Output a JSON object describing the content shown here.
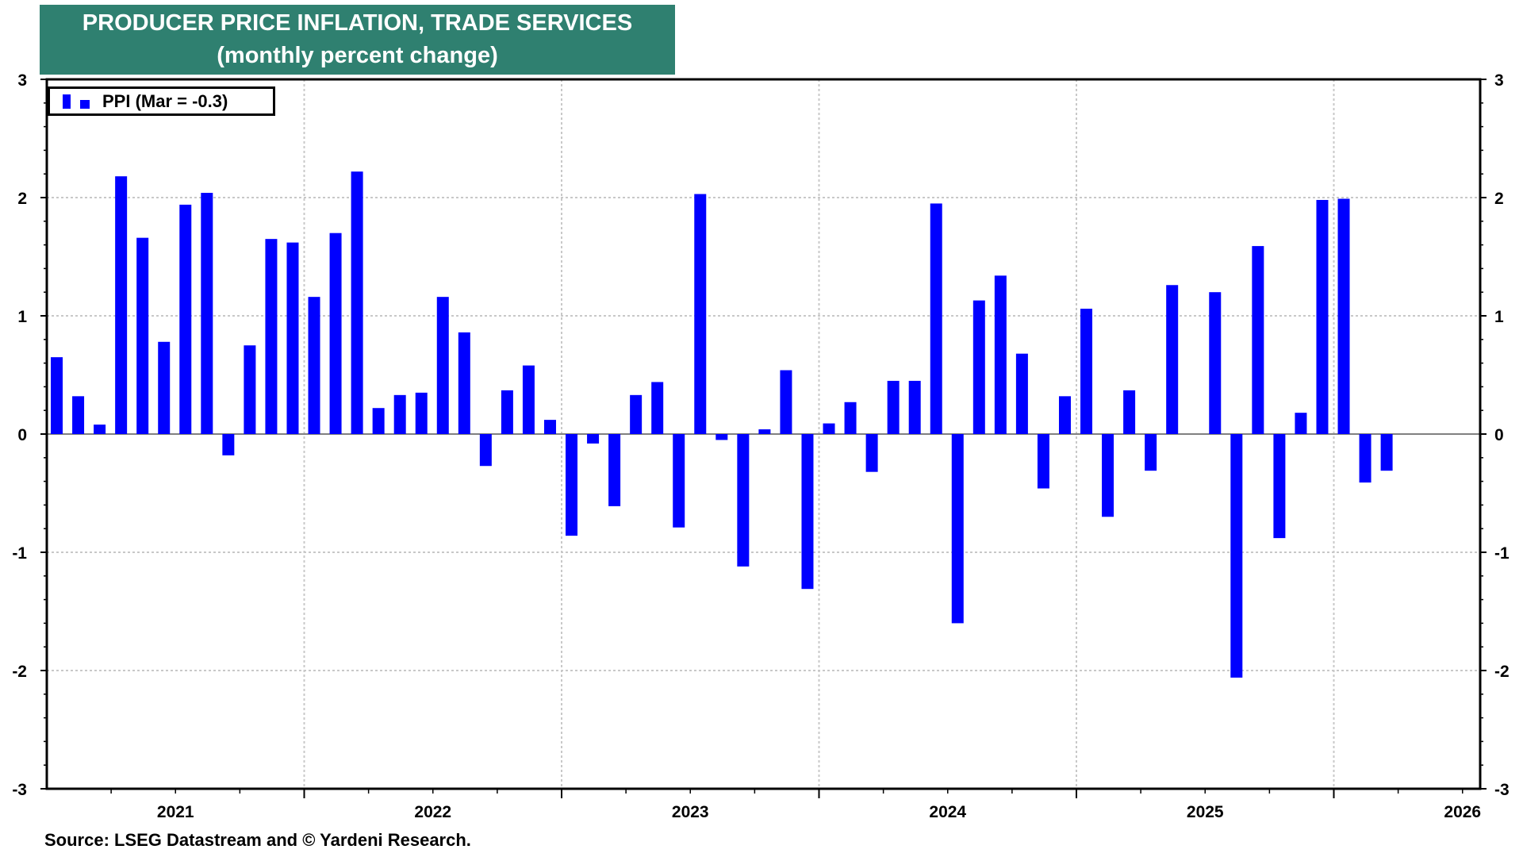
{
  "chart_data": {
    "type": "bar",
    "title": "PRODUCER PRICE INFLATION, TRADE SERVICES",
    "subtitle": "(monthly percent change)",
    "legend": {
      "label": "PPI (Mar = -0.3)",
      "placement": "top-left"
    },
    "source": "Source: LSEG Datastream and © Yardeni Research.",
    "ylim": [
      -3,
      3
    ],
    "yticks": [
      -3,
      -2,
      -1,
      0,
      1,
      2,
      3
    ],
    "xticks": [
      "2021",
      "2022",
      "2023",
      "2024",
      "2025",
      "2026"
    ],
    "grid": true,
    "start": "2021-01",
    "series": [
      {
        "name": "PPI",
        "color": "#0000ff",
        "values": [
          0.65,
          0.32,
          0.08,
          2.18,
          1.66,
          0.78,
          1.94,
          2.04,
          -0.18,
          0.75,
          1.65,
          1.62,
          1.16,
          1.7,
          2.22,
          0.22,
          0.33,
          0.35,
          1.16,
          0.86,
          -0.27,
          0.37,
          0.58,
          0.12,
          -0.86,
          -0.08,
          -0.61,
          0.33,
          0.44,
          -0.79,
          2.03,
          -0.05,
          -1.12,
          0.04,
          0.54,
          -1.31,
          0.09,
          0.27,
          -0.32,
          0.45,
          0.45,
          1.95,
          -1.6,
          1.13,
          1.34,
          0.68,
          -0.46,
          0.32,
          1.06,
          -0.7,
          0.37,
          -0.31,
          1.26,
          null,
          1.2,
          -2.06,
          1.59,
          -0.88,
          0.18,
          1.98,
          1.99,
          -0.41,
          -0.31
        ]
      }
    ]
  }
}
